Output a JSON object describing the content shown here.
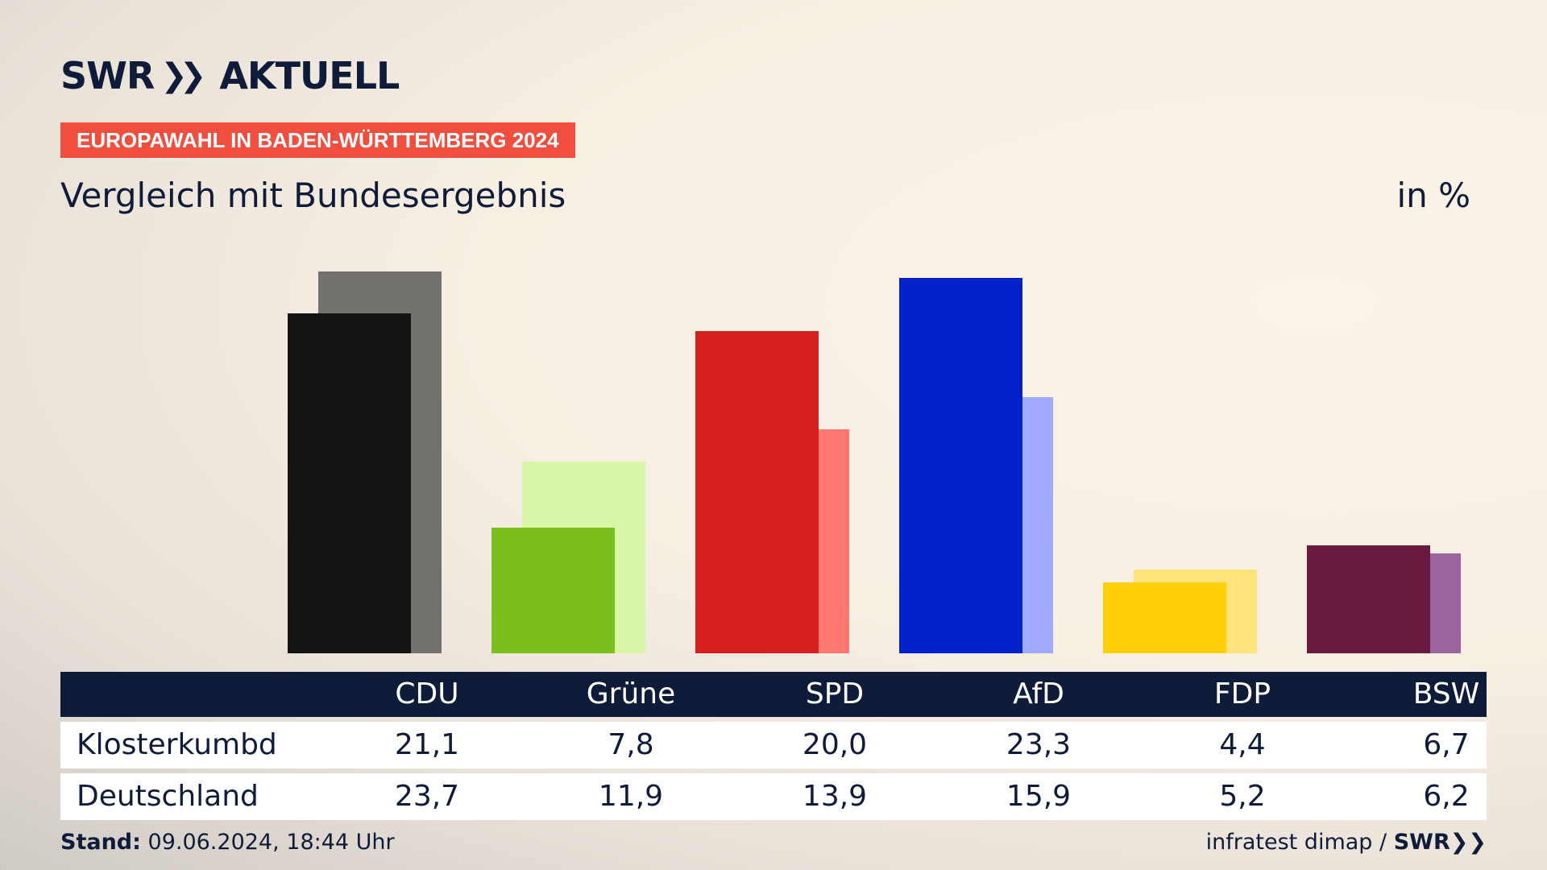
{
  "brand": {
    "logo_text": "SWR",
    "logo_suffix": "AKTUELL",
    "tagline": "EUROPAWAHL IN BADEN-WÜRTTEMBERG 2024"
  },
  "subtitle": "Vergleich mit Bundesergebnis",
  "unit_label": "in %",
  "chart_data": {
    "type": "bar",
    "categories": [
      "CDU",
      "Grüne",
      "SPD",
      "AfD",
      "FDP",
      "BSW"
    ],
    "series": [
      {
        "name": "Klosterkumbd",
        "values": [
          21.1,
          7.8,
          20.0,
          23.3,
          4.4,
          6.7
        ],
        "colors": [
          "#141414",
          "#7abf1e",
          "#d61f1f",
          "#0022c8",
          "#ffcf0a",
          "#6a1a3e"
        ]
      },
      {
        "name": "Deutschland",
        "values": [
          23.7,
          11.9,
          13.9,
          15.9,
          5.2,
          6.2
        ],
        "colors": [
          "#73716e",
          "#d9f5a8",
          "#ff7770",
          "#a0aaff",
          "#ffe27a",
          "#9b649e"
        ]
      }
    ],
    "ylim": [
      0,
      24
    ]
  },
  "table": {
    "headers": [
      "CDU",
      "Grüne",
      "SPD",
      "AfD",
      "FDP",
      "BSW"
    ],
    "rows": [
      {
        "label": "Klosterkumbd",
        "values": [
          "21,1",
          "7,8",
          "20,0",
          "23,3",
          "4,4",
          "6,7"
        ]
      },
      {
        "label": "Deutschland",
        "values": [
          "23,7",
          "11,9",
          "13,9",
          "15,9",
          "5,2",
          "6,2"
        ]
      }
    ]
  },
  "footer": {
    "stand_label": "Stand:",
    "stand_value": "09.06.2024, 18:44 Uhr",
    "source": "infratest dimap /",
    "source_brand": "SWR"
  },
  "colors": {
    "navy": "#0e1c3a",
    "accent": "#f04e3e"
  }
}
